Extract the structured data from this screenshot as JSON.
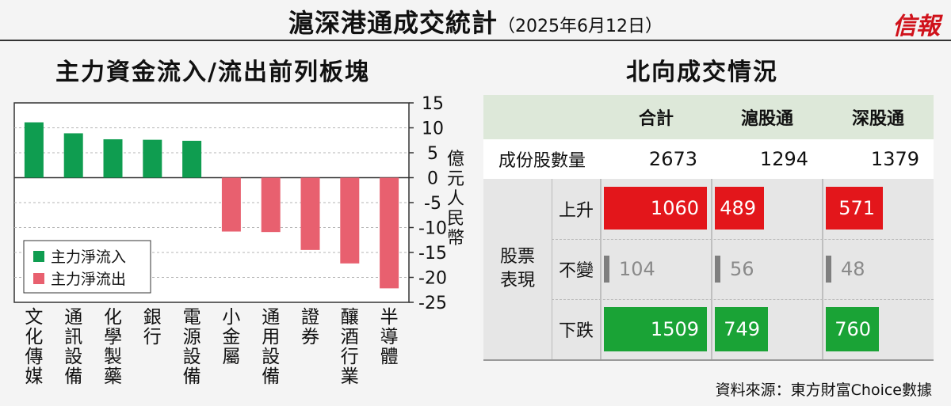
{
  "header": {
    "title": "滬深港通成交統計",
    "date": "（2025年6月12日）",
    "logo": "信報"
  },
  "left_panel": {
    "title": "主力資金流入/流出前列板塊"
  },
  "right_panel": {
    "title": "北向成交情況"
  },
  "chart_data": {
    "type": "bar",
    "categories": [
      "文化傳媒",
      "通訊設備",
      "化學製藥",
      "銀行",
      "電源設備",
      "小金屬",
      "通用設備",
      "證券",
      "釀酒行業",
      "半導體"
    ],
    "values": [
      11.1,
      8.9,
      7.7,
      7.6,
      7.4,
      -10.8,
      -10.9,
      -14.5,
      -17.2,
      -22.2
    ],
    "ylabel": "億元人民幣",
    "ylim": [
      -25,
      15
    ],
    "yticks": [
      15,
      10,
      5,
      0,
      -5,
      -10,
      -15,
      -20,
      -25
    ],
    "ytick_labels": [
      "15",
      "10",
      "5",
      "0",
      "-5",
      "-10",
      "-15",
      "-20",
      "-25"
    ],
    "grid": true,
    "legend": [
      {
        "name": "主力淨流入",
        "color": "#0f9d50"
      },
      {
        "name": "主力淨流出",
        "color": "#e8606f"
      }
    ],
    "legend_position": "bottom-left",
    "colors": {
      "inflow": "#0f9d50",
      "outflow": "#e8606f"
    }
  },
  "table": {
    "columns": [
      "合計",
      "滬股通",
      "深股通"
    ],
    "constituents": {
      "label": "成份股數量",
      "values": [
        "2673",
        "1294",
        "1379"
      ]
    },
    "group_label": [
      "股票",
      "表現"
    ],
    "rows": [
      {
        "label": "上升",
        "values": [
          "1060",
          "489",
          "571"
        ],
        "numbers": [
          1060,
          489,
          571
        ],
        "color": "#e3161b"
      },
      {
        "label": "不變",
        "values": [
          "104",
          "56",
          "48"
        ],
        "numbers": [
          104,
          56,
          48
        ],
        "color": "#8a8a8a"
      },
      {
        "label": "下跌",
        "values": [
          "1509",
          "749",
          "760"
        ],
        "numbers": [
          1509,
          749,
          760
        ],
        "color": "#1aa336"
      }
    ]
  },
  "source": "資料來源：東方財富Choice數據"
}
